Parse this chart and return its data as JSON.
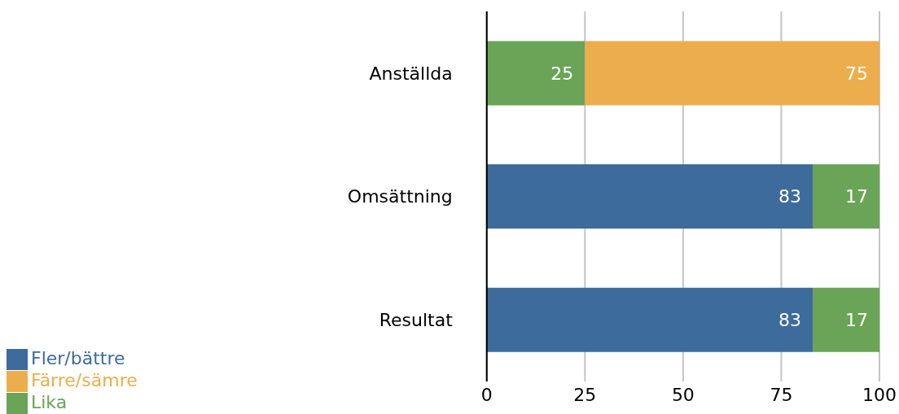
{
  "chart_data": {
    "type": "bar",
    "orientation": "horizontal",
    "stacked": true,
    "categories": [
      "Anställda",
      "Omsättning",
      "Resultat"
    ],
    "series": [
      {
        "name": "Fler/bättre",
        "color": "#3d6b9c",
        "values": [
          null,
          83,
          83
        ]
      },
      {
        "name": "Lika",
        "color": "#6aa457",
        "values": [
          25,
          17,
          17
        ]
      },
      {
        "name": "Färre/sämre",
        "color": "#ecae4c",
        "values": [
          75,
          null,
          null
        ]
      }
    ],
    "xlim": [
      0,
      100
    ],
    "xticks": [
      0,
      25,
      50,
      75,
      100
    ],
    "grid": "x",
    "legend": "bottom left",
    "data_labels": true
  }
}
